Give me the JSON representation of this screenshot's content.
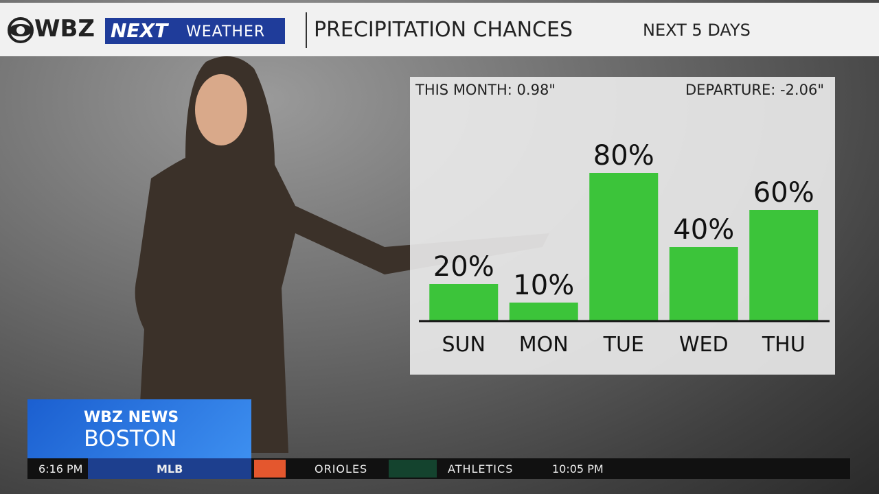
{
  "header": {
    "brand": "WBZ",
    "next": "NEXT",
    "weather": "WEATHER",
    "title": "PRECIPITATION CHANCES",
    "subtitle": "NEXT 5 DAYS"
  },
  "chart_data": {
    "type": "bar",
    "annotations": [
      "THIS MONTH:  0.98\"",
      "DEPARTURE:  -2.06\""
    ],
    "categories": [
      "SUN",
      "MON",
      "TUE",
      "WED",
      "THU"
    ],
    "values": [
      20,
      10,
      80,
      40,
      60
    ],
    "value_labels": [
      "20%",
      "10%",
      "80%",
      "40%",
      "60%"
    ],
    "color": "#3cc43a"
  },
  "lower_third": {
    "brand": "WBZ NEWS",
    "city": "BOSTON"
  },
  "ticker": {
    "time": "6:16 PM",
    "league": "MLB",
    "team1": "ORIOLES",
    "team2": "ATHLETICS",
    "game_time": "10:05 PM"
  }
}
